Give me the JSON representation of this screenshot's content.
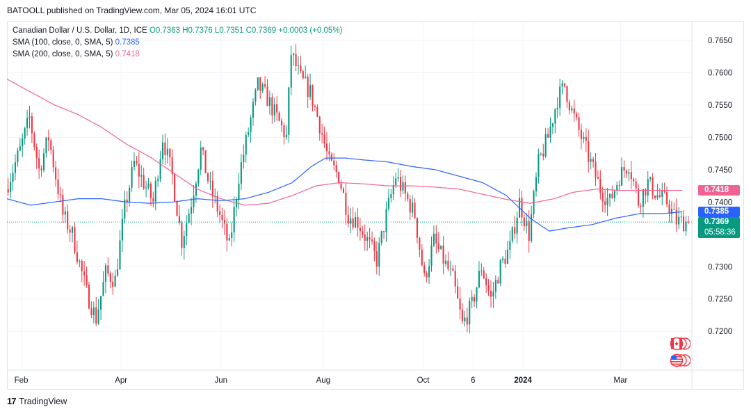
{
  "header": {
    "publisher": "BATOOLL published on TradingView.com, Mar 05, 2024 16:01 UTC"
  },
  "legend": {
    "instrument": "Canadian Dollar / U.S. Dollar, 1D, ICE",
    "ohlc": "O0.7363  H0.7376  L0.7351  C0.7369  +0.0003 (+0.05%)",
    "sma100_label": "SMA (100, close, 0, SMA, 5)",
    "sma100_value": "0.7385",
    "sma200_label": "SMA (200, close, 0, SMA, 5)",
    "sma200_value": "0.7418"
  },
  "price_badges": {
    "sma200": "0.7418",
    "sma100": "0.7385",
    "last": "0.7369",
    "countdown": "05:58:36"
  },
  "footer": {
    "brand": "TradingView",
    "logo": "17"
  },
  "icons": {
    "canada_flag": "canada-flag-icon",
    "us_flag": "us-flag-icon"
  },
  "chart_data": {
    "type": "candlestick",
    "symbol": "CADUSD",
    "interval": "1D",
    "yaxis": {
      "ticks": [
        "0.7650",
        "0.7600",
        "0.7550",
        "0.7500",
        "0.7450",
        "0.7400",
        "0.7350",
        "0.7300",
        "0.7250",
        "0.7200"
      ],
      "range": [
        0.714,
        0.768
      ],
      "position": "right"
    },
    "xaxis": {
      "ticks": [
        "Feb",
        "Apr",
        "Jun",
        "Aug",
        "Oct",
        "6",
        "2024",
        "Mar"
      ],
      "bold_ticks": [
        "2024"
      ],
      "range": [
        0,
        288
      ]
    },
    "xtick_positions": [
      6,
      48,
      90,
      133,
      175,
      196,
      217,
      258
    ],
    "last_price": 0.7369,
    "price_anchors": [
      [
        0,
        0.742
      ],
      [
        6,
        0.748
      ],
      [
        10,
        0.753
      ],
      [
        14,
        0.745
      ],
      [
        18,
        0.75
      ],
      [
        24,
        0.738
      ],
      [
        28,
        0.735
      ],
      [
        34,
        0.726
      ],
      [
        38,
        0.722
      ],
      [
        42,
        0.729
      ],
      [
        46,
        0.728
      ],
      [
        50,
        0.739
      ],
      [
        54,
        0.746
      ],
      [
        58,
        0.743
      ],
      [
        62,
        0.74
      ],
      [
        66,
        0.75
      ],
      [
        70,
        0.744
      ],
      [
        74,
        0.734
      ],
      [
        78,
        0.74
      ],
      [
        82,
        0.748
      ],
      [
        86,
        0.742
      ],
      [
        90,
        0.738
      ],
      [
        94,
        0.733
      ],
      [
        98,
        0.744
      ],
      [
        102,
        0.751
      ],
      [
        106,
        0.758
      ],
      [
        110,
        0.756
      ],
      [
        114,
        0.753
      ],
      [
        118,
        0.75
      ],
      [
        120,
        0.763
      ],
      [
        124,
        0.759
      ],
      [
        128,
        0.757
      ],
      [
        132,
        0.752
      ],
      [
        136,
        0.746
      ],
      [
        140,
        0.744
      ],
      [
        144,
        0.738
      ],
      [
        148,
        0.737
      ],
      [
        152,
        0.734
      ],
      [
        156,
        0.731
      ],
      [
        160,
        0.738
      ],
      [
        164,
        0.744
      ],
      [
        168,
        0.741
      ],
      [
        172,
        0.738
      ],
      [
        176,
        0.728
      ],
      [
        180,
        0.734
      ],
      [
        184,
        0.731
      ],
      [
        188,
        0.728
      ],
      [
        192,
        0.721
      ],
      [
        196,
        0.724
      ],
      [
        200,
        0.73
      ],
      [
        204,
        0.725
      ],
      [
        208,
        0.73
      ],
      [
        212,
        0.733
      ],
      [
        216,
        0.74
      ],
      [
        220,
        0.735
      ],
      [
        224,
        0.746
      ],
      [
        228,
        0.75
      ],
      [
        232,
        0.756
      ],
      [
        235,
        0.758
      ],
      [
        238,
        0.754
      ],
      [
        242,
        0.75
      ],
      [
        246,
        0.746
      ],
      [
        250,
        0.742
      ],
      [
        254,
        0.74
      ],
      [
        258,
        0.744
      ],
      [
        262,
        0.746
      ],
      [
        266,
        0.74
      ],
      [
        270,
        0.743
      ],
      [
        274,
        0.741
      ],
      [
        278,
        0.74
      ],
      [
        282,
        0.737
      ],
      [
        286,
        0.7369
      ]
    ],
    "sma100_anchors": [
      [
        0,
        0.7405
      ],
      [
        10,
        0.7395
      ],
      [
        20,
        0.74
      ],
      [
        30,
        0.7405
      ],
      [
        40,
        0.7405
      ],
      [
        50,
        0.74
      ],
      [
        60,
        0.7398
      ],
      [
        70,
        0.74
      ],
      [
        80,
        0.7405
      ],
      [
        90,
        0.7402
      ],
      [
        100,
        0.7405
      ],
      [
        110,
        0.7415
      ],
      [
        120,
        0.743
      ],
      [
        128,
        0.7455
      ],
      [
        134,
        0.7468
      ],
      [
        142,
        0.7468
      ],
      [
        150,
        0.7465
      ],
      [
        160,
        0.7462
      ],
      [
        170,
        0.7455
      ],
      [
        180,
        0.745
      ],
      [
        190,
        0.744
      ],
      [
        200,
        0.743
      ],
      [
        210,
        0.741
      ],
      [
        220,
        0.7375
      ],
      [
        228,
        0.7355
      ],
      [
        236,
        0.736
      ],
      [
        246,
        0.7365
      ],
      [
        256,
        0.7375
      ],
      [
        266,
        0.7382
      ],
      [
        276,
        0.7382
      ],
      [
        284,
        0.7385
      ]
    ],
    "sma200_anchors": [
      [
        0,
        0.759
      ],
      [
        10,
        0.757
      ],
      [
        20,
        0.755
      ],
      [
        30,
        0.7535
      ],
      [
        40,
        0.7515
      ],
      [
        50,
        0.749
      ],
      [
        60,
        0.747
      ],
      [
        70,
        0.7445
      ],
      [
        80,
        0.742
      ],
      [
        90,
        0.7405
      ],
      [
        100,
        0.7395
      ],
      [
        110,
        0.7398
      ],
      [
        120,
        0.741
      ],
      [
        130,
        0.7425
      ],
      [
        140,
        0.743
      ],
      [
        150,
        0.7428
      ],
      [
        160,
        0.7425
      ],
      [
        170,
        0.7425
      ],
      [
        180,
        0.7423
      ],
      [
        190,
        0.742
      ],
      [
        200,
        0.7412
      ],
      [
        210,
        0.7404
      ],
      [
        220,
        0.7398
      ],
      [
        230,
        0.7405
      ],
      [
        238,
        0.7415
      ],
      [
        248,
        0.742
      ],
      [
        258,
        0.7418
      ],
      [
        268,
        0.7418
      ],
      [
        276,
        0.7418
      ],
      [
        284,
        0.7418
      ]
    ]
  },
  "colors": {
    "up": "#089981",
    "down": "#f23645",
    "sma100": "#2962ff",
    "sma200": "#f06292",
    "grid": "#f0f3fa",
    "axis_text": "#131722",
    "last_price_line": "#089981"
  }
}
